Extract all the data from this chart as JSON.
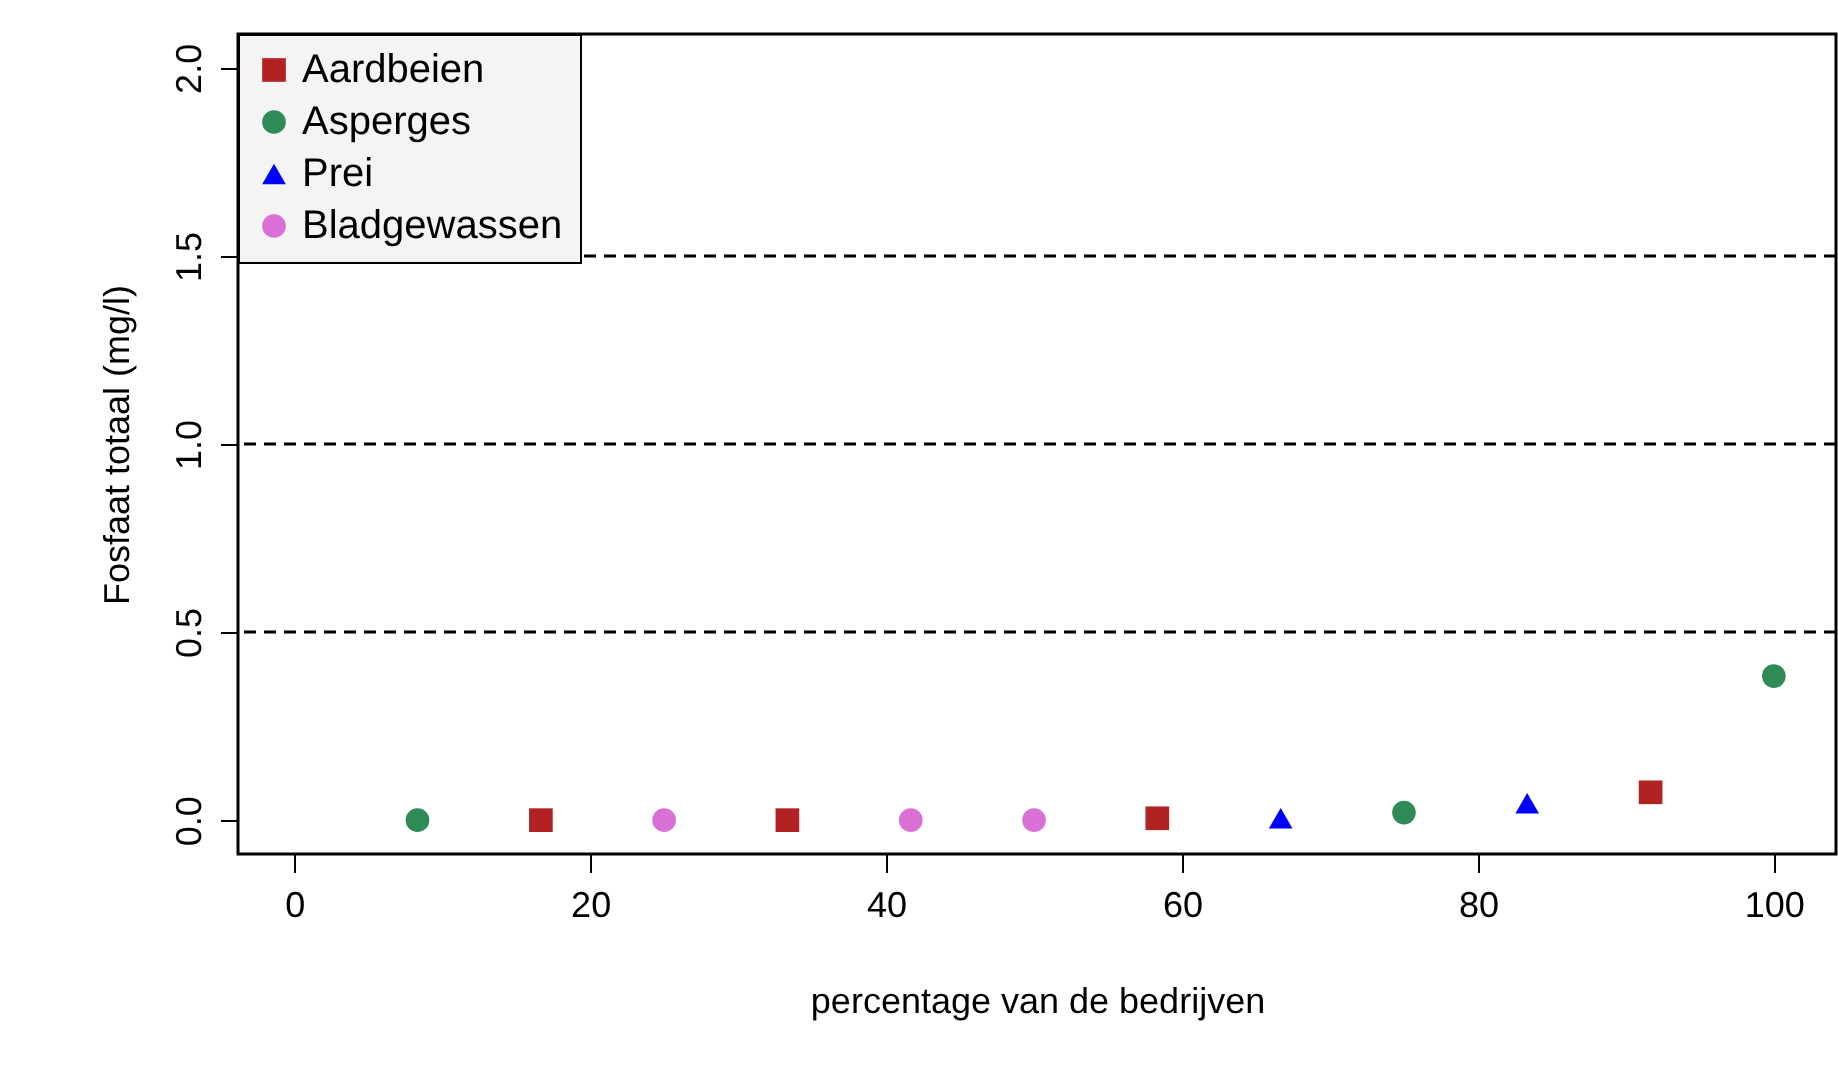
{
  "chart_data": {
    "type": "scatter",
    "xlabel": "percentage van de bedrijven",
    "ylabel": "Fosfaat totaal (mg/l)",
    "xlim": [
      -3.8,
      104.2
    ],
    "ylim": [
      -0.09,
      2.09
    ],
    "xticks": [
      0,
      20,
      40,
      60,
      80,
      100
    ],
    "yticks": [
      {
        "value": 0,
        "label": "0.0"
      },
      0.5,
      {
        "value": 1,
        "label": "1.0"
      },
      1.5,
      {
        "value": 2,
        "label": "2.0"
      }
    ],
    "legend": "top left",
    "series": [
      {
        "name": "Aardbeien",
        "color": "#b22222",
        "marker": "square",
        "x": [
          16.67,
          33.33,
          58.33,
          91.67
        ],
        "values": [
          0,
          0,
          0.005,
          0.074
        ]
      },
      {
        "name": "Asperges",
        "color": "#2e8b57",
        "marker": "circle",
        "x": [
          8.33,
          75,
          100
        ],
        "values": [
          0,
          0.02,
          0.383
        ]
      },
      {
        "name": "Prei",
        "color": "#0000ff",
        "marker": "triangle",
        "x": [
          66.67,
          83.33
        ],
        "values": [
          0.005,
          0.045
        ]
      },
      {
        "name": "Bladgewassen",
        "color": "#da70d6",
        "marker": "circle",
        "x": [
          25,
          41.67,
          50
        ],
        "values": [
          0,
          0,
          0
        ]
      }
    ],
    "ref_lines": [
      {
        "axis": "y",
        "value": 0.5,
        "line_style": "dashed"
      },
      {
        "axis": "y",
        "value": 1,
        "line_style": "dashed"
      },
      {
        "axis": "y",
        "value": 1.5,
        "line_style": "dashed"
      }
    ]
  }
}
